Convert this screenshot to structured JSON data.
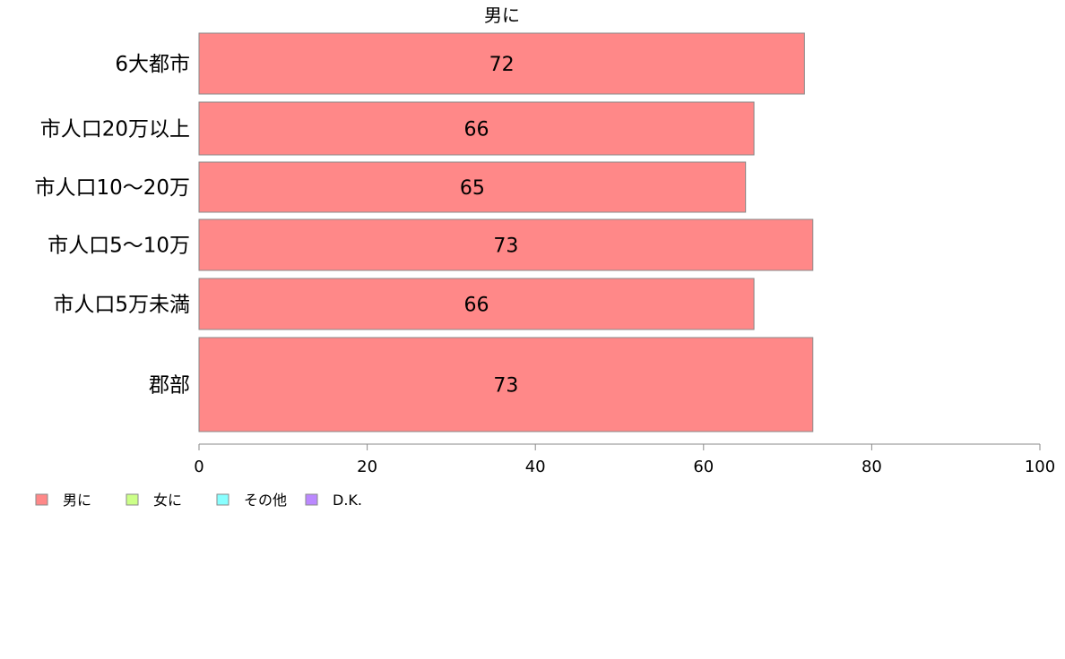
{
  "chart_data": {
    "type": "bar",
    "orientation": "horizontal",
    "title": "男に",
    "categories": [
      "6大都市",
      "市人口20万以上",
      "市人口10〜20万",
      "市人口5〜10万",
      "市人口5万未満",
      "郡部"
    ],
    "values": [
      72,
      66,
      65,
      73,
      66,
      73
    ],
    "data_labels": [
      "72",
      "66",
      "65",
      "73",
      "66",
      "73"
    ],
    "xlim": [
      0,
      100
    ],
    "xticks": [
      0,
      20,
      40,
      60,
      80,
      100
    ],
    "xtick_labels": [
      "0",
      "20",
      "40",
      "60",
      "80",
      "100"
    ],
    "grid": false,
    "legend": {
      "placement": "bottom-left",
      "entries": [
        {
          "label": "男に",
          "color": "#ff8888"
        },
        {
          "label": "女に",
          "color": "#ccff88"
        },
        {
          "label": "その他",
          "color": "#88ffff"
        },
        {
          "label": "D.K.",
          "color": "#bb88ff"
        }
      ]
    },
    "bar_color": "#ff8888"
  }
}
